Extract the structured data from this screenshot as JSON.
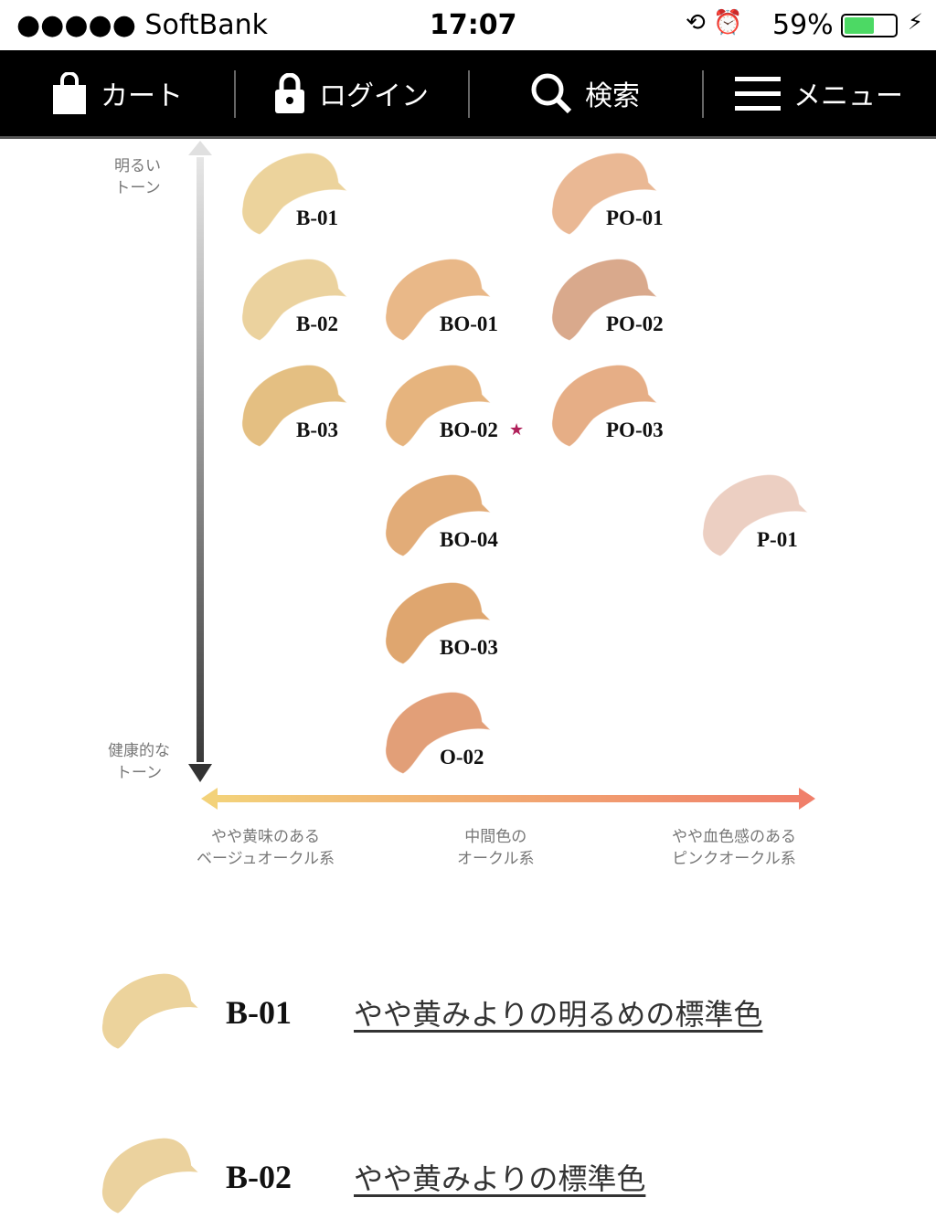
{
  "status_bar": {
    "carrier": "●●●●● SoftBank",
    "time": "17:07",
    "battery": "59%",
    "battery_level": 59
  },
  "nav": {
    "items": [
      {
        "label": "カート",
        "icon": "shopping-bag-icon"
      },
      {
        "label": "ログイン",
        "icon": "lock-icon"
      },
      {
        "label": "検索",
        "icon": "search-icon"
      },
      {
        "label": "メニュー",
        "icon": "menu-icon"
      }
    ]
  },
  "chart": {
    "y_top_label": "明るい\nトーン",
    "y_bottom_label": "健康的な\nトーン",
    "x_labels": [
      "やや黄味のある\nベージュオークル系",
      "中間色の\nオークル系",
      "やや血色感のある\nピンクオークル系"
    ],
    "swatches": [
      {
        "code": "B-01",
        "color": "#ecd39c"
      },
      {
        "code": "PO-01",
        "color": "#eab894"
      },
      {
        "code": "B-02",
        "color": "#ebd29e"
      },
      {
        "code": "BO-01",
        "color": "#e9b888"
      },
      {
        "code": "PO-02",
        "color": "#d9a98c"
      },
      {
        "code": "B-03",
        "color": "#e4bf82"
      },
      {
        "code": "BO-02",
        "color": "#e6b47e",
        "star": "★"
      },
      {
        "code": "PO-03",
        "color": "#e6ae86"
      },
      {
        "code": "BO-04",
        "color": "#e2ac78"
      },
      {
        "code": "P-01",
        "color": "#eccfc2"
      },
      {
        "code": "BO-03",
        "color": "#dfa66f"
      },
      {
        "code": "O-02",
        "color": "#e29f78"
      }
    ]
  },
  "list": [
    {
      "code": "B-01",
      "description": "やや黄みよりの明るめの標準色",
      "color": "#ecd39c"
    },
    {
      "code": "B-02",
      "description": "やや黄みよりの標準色",
      "color": "#ebd29e"
    }
  ]
}
